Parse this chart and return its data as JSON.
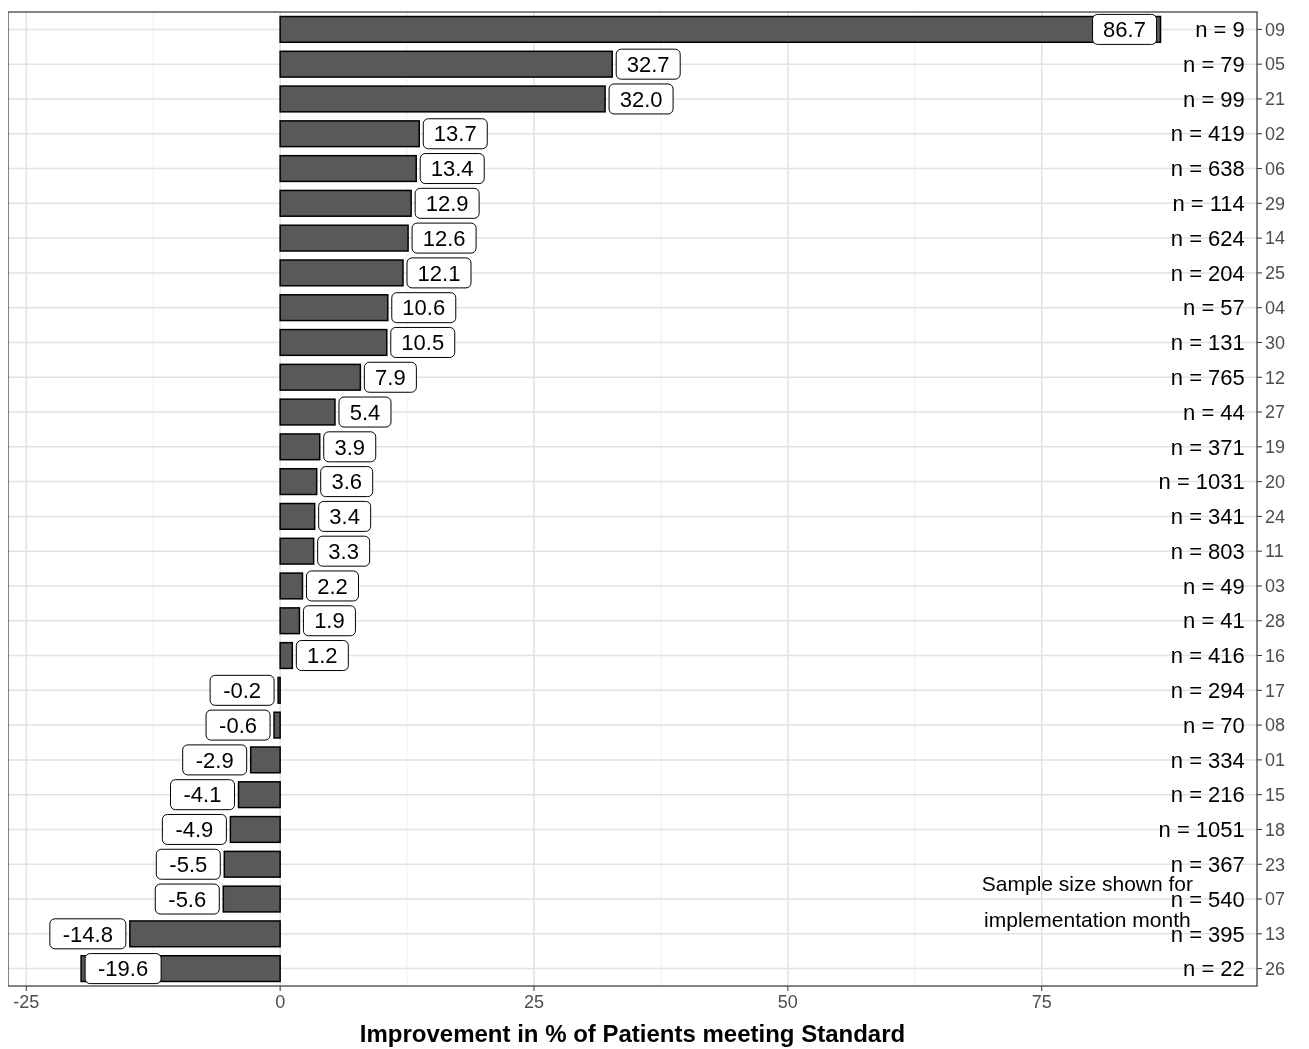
{
  "chart_data": {
    "type": "bar",
    "orientation": "horizontal",
    "xlabel": "Improvement in % of Patients meeting Standard",
    "categories": [
      "09",
      "05",
      "21",
      "02",
      "06",
      "29",
      "14",
      "25",
      "04",
      "30",
      "12",
      "27",
      "19",
      "20",
      "24",
      "11",
      "03",
      "28",
      "16",
      "17",
      "08",
      "01",
      "15",
      "18",
      "23",
      "07",
      "13",
      "26"
    ],
    "values": [
      86.7,
      32.7,
      32.0,
      13.7,
      13.4,
      12.9,
      12.6,
      12.1,
      10.6,
      10.5,
      7.9,
      5.4,
      3.9,
      3.6,
      3.4,
      3.3,
      2.2,
      1.9,
      1.2,
      -0.2,
      -0.6,
      -2.9,
      -4.1,
      -4.9,
      -5.5,
      -5.6,
      -14.8,
      -19.6
    ],
    "color": "#595959",
    "value_labels": [
      "86.7",
      "32.7",
      "32.0",
      "13.7",
      "13.4",
      "12.9",
      "12.6",
      "12.1",
      "10.6",
      "10.5",
      "7.9",
      "5.4",
      "3.9",
      "3.6",
      "3.4",
      "3.3",
      "2.2",
      "1.9",
      "1.2",
      "-0.2",
      "-0.6",
      "-2.9",
      "-4.1",
      "-4.9",
      "-5.5",
      "-5.6",
      "-14.8",
      "-19.6"
    ],
    "xlim": [
      -26.8,
      96.2
    ],
    "xticks": [
      -25,
      0,
      25,
      50,
      75
    ],
    "grid": true,
    "annotations": [
      "n = 9",
      "n = 79",
      "n = 99",
      "n = 419",
      "n = 638",
      "n = 114",
      "n = 624",
      "n = 204",
      "n = 57",
      "n = 131",
      "n = 765",
      "n = 44",
      "n = 371",
      "n = 1031",
      "n = 341",
      "n = 803",
      "n = 49",
      "n = 41",
      "n = 416",
      "n = 294",
      "n = 70",
      "n = 334",
      "n = 216",
      "n = 1051",
      "n = 367",
      "n = 540",
      "n = 395",
      "n = 22",
      "Sample size shown for\nimplementation month"
    ]
  }
}
